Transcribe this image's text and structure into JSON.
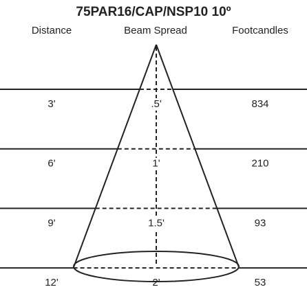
{
  "header": {
    "title": "75PAR16/CAP/NSP10 10º",
    "columns": [
      "Distance",
      "Beam Spread",
      "Footcandles"
    ]
  },
  "rows": [
    {
      "distance": "3'",
      "beam_spread": ".5'",
      "footcandles": 834
    },
    {
      "distance": "6'",
      "beam_spread": "1'",
      "footcandles": 210
    },
    {
      "distance": "9'",
      "beam_spread": "1.5'",
      "footcandles": 93
    },
    {
      "distance": "12'",
      "beam_spread": "2'",
      "footcandles": 53
    }
  ]
}
